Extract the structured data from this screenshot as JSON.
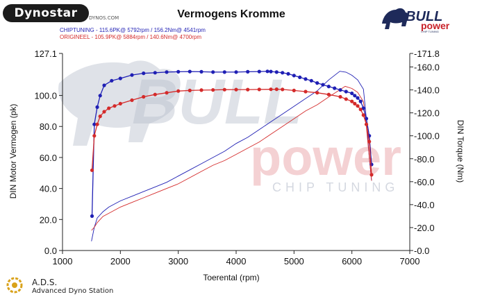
{
  "branding": {
    "dyno_logo_text": "Dynostar",
    "dyno_logo_subtext": "DYNOS.COM",
    "brand_logo_top": "BULL",
    "brand_logo_bottom": "power",
    "brand_logo_tagline": "CHIP TUNING",
    "watermark_top": "BULL",
    "watermark_bottom": "power",
    "watermark_tagline": "CHIP TUNING",
    "footer_title": "A.D.S.",
    "footer_subtitle": "Advanced Dyno Station"
  },
  "chart_data": {
    "type": "line",
    "title": "Vermogens Kromme",
    "legend": [
      {
        "text": "CHIPTUNING - 115.6PK@ 5792rpm / 156.2Nm@ 4541rpm",
        "color": "#1f1fb4"
      },
      {
        "text": "ORIGINEEL - 105.9PK@ 5884rpm / 140.6Nm@ 4700rpm",
        "color": "#d42a2a"
      }
    ],
    "xlabel": "Toerental (rpm)",
    "ylabel_left": "DIN Motor Vermogen (pk)",
    "ylabel_right": "DIN Torque (Nm)",
    "xlim": [
      1000,
      7000
    ],
    "ylim_left": [
      0,
      127.1
    ],
    "ylim_right": [
      0,
      171.8
    ],
    "x_ticks": [
      "1000",
      "2000",
      "3000",
      "4000",
      "5000",
      "6000",
      "7000"
    ],
    "y_left_ticks": [
      "0.0",
      "20.0",
      "40.0",
      "60.0",
      "80.0",
      "100.0",
      "127.1"
    ],
    "y_right_ticks": [
      "0.0",
      "20.0",
      "40.0",
      "60.0",
      "80.0",
      "100.0",
      "120.0",
      "140.0",
      "160.0",
      "171.8"
    ],
    "series": [
      {
        "name": "CHIPTUNING",
        "quantity": "power",
        "axis": "left",
        "color": "#1f1fb4",
        "markers": false,
        "x": [
          1500,
          1550,
          1600,
          1700,
          1800,
          2000,
          2200,
          2400,
          2600,
          2800,
          3000,
          3200,
          3400,
          3600,
          3800,
          4000,
          4200,
          4400,
          4600,
          4800,
          5000,
          5200,
          5400,
          5600,
          5792,
          5900,
          6000,
          6100,
          6200,
          6250,
          6300,
          6340
        ],
        "y": [
          6,
          15,
          21,
          25,
          28,
          32,
          35,
          38,
          41,
          44,
          48,
          52,
          56,
          60,
          64,
          69,
          73,
          78,
          83,
          88,
          93,
          98,
          103,
          110,
          115.6,
          115,
          113,
          110,
          104,
          85,
          60,
          45
        ]
      },
      {
        "name": "ORIGINEEL",
        "quantity": "power",
        "axis": "left",
        "color": "#d42a2a",
        "markers": false,
        "x": [
          1500,
          1550,
          1600,
          1700,
          1800,
          2000,
          2200,
          2400,
          2600,
          2800,
          3000,
          3200,
          3400,
          3600,
          3800,
          4000,
          4200,
          4400,
          4600,
          4800,
          5000,
          5200,
          5400,
          5600,
          5884,
          6000,
          6100,
          6200,
          6250,
          6300,
          6340
        ],
        "y": [
          13,
          15,
          18,
          22,
          24,
          28,
          31,
          34,
          37,
          40,
          43,
          47,
          51,
          55,
          58,
          62,
          66,
          70,
          75,
          80,
          85,
          90,
          94,
          99,
          105.9,
          104.5,
          102,
          96,
          80,
          60,
          45
        ]
      },
      {
        "name": "CHIPTUNING",
        "quantity": "torque",
        "axis": "right",
        "color": "#1f1fb4",
        "markers": true,
        "x": [
          1510,
          1550,
          1600,
          1650,
          1720,
          1850,
          2000,
          2200,
          2400,
          2600,
          2800,
          3000,
          3200,
          3400,
          3600,
          3800,
          4000,
          4200,
          4400,
          4541,
          4600,
          4700,
          4800,
          4900,
          5000,
          5100,
          5200,
          5300,
          5400,
          5500,
          5600,
          5700,
          5800,
          5900,
          6000,
          6050,
          6100,
          6150,
          6200,
          6250,
          6300,
          6340
        ],
        "y": [
          30,
          110,
          125,
          135,
          144,
          148,
          150,
          153,
          154.5,
          155,
          155.5,
          155.8,
          156,
          155.8,
          155.5,
          155.5,
          155.5,
          155.8,
          156,
          156.2,
          156,
          155.5,
          155,
          154,
          152.5,
          151,
          149.5,
          148,
          146,
          144.5,
          143,
          141.5,
          140,
          138.5,
          137,
          135,
          133,
          130,
          124,
          115,
          100,
          75
        ]
      },
      {
        "name": "ORIGINEEL",
        "quantity": "torque",
        "axis": "right",
        "color": "#d42a2a",
        "markers": true,
        "x": [
          1510,
          1550,
          1600,
          1650,
          1720,
          1800,
          1900,
          2000,
          2200,
          2400,
          2600,
          2800,
          3000,
          3200,
          3400,
          3600,
          3800,
          4000,
          4200,
          4400,
          4600,
          4700,
          4800,
          5000,
          5200,
          5400,
          5600,
          5800,
          5900,
          6000,
          6050,
          6100,
          6150,
          6200,
          6250,
          6300,
          6340
        ],
        "y": [
          70,
          100,
          110,
          117,
          121,
          124,
          126,
          128,
          131,
          134,
          136,
          137.5,
          139,
          139.5,
          139.8,
          140,
          140.2,
          140.3,
          140.3,
          140.4,
          140.5,
          140.6,
          140.4,
          139.5,
          138.5,
          137.5,
          136,
          134,
          132,
          130,
          128,
          126,
          123,
          118,
          110,
          95,
          66
        ]
      }
    ]
  }
}
